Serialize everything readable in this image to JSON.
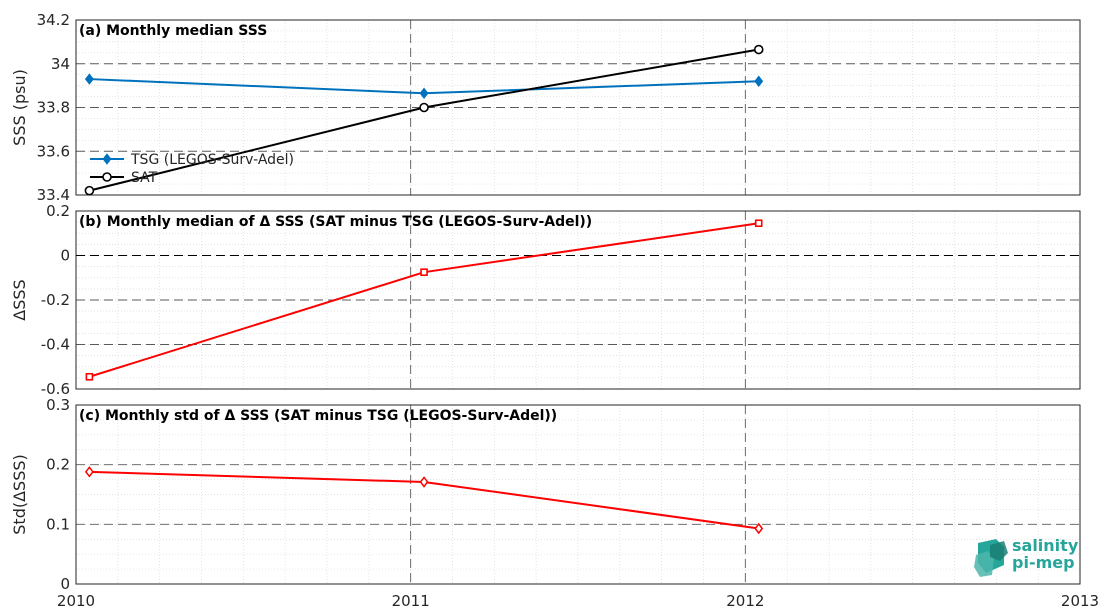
{
  "chart_data": [
    {
      "type": "line",
      "title": "(a) Monthly median SSS",
      "ylabel": "SSS (psu)",
      "ylim": [
        33.4,
        34.2
      ],
      "yticks": [
        "33.4",
        "33.6",
        "33.8",
        "34",
        "34.2"
      ],
      "grid": true,
      "legend": "left",
      "series": [
        {
          "name": "TSG (LEGOS-Surv-Adel)",
          "color": "#0072bd",
          "marker": "diamond",
          "x": [
            2010.04,
            2011.04,
            2012.04
          ],
          "y": [
            33.93,
            33.865,
            33.92
          ]
        },
        {
          "name": "SAT",
          "color": "#000000",
          "marker": "circle",
          "x": [
            2010.04,
            2011.04,
            2012.04
          ],
          "y": [
            33.42,
            33.8,
            34.065
          ]
        }
      ]
    },
    {
      "type": "line",
      "title": "(b) Monthly median of Δ SSS (SAT minus TSG (LEGOS-Surv-Adel))",
      "ylabel": "ΔSSS",
      "ylim": [
        -0.6,
        0.2
      ],
      "yticks": [
        "-0.6",
        "-0.4",
        "-0.2",
        "0",
        "0.2"
      ],
      "grid": true,
      "series": [
        {
          "color": "#ff0000",
          "marker": "square",
          "x": [
            2010.04,
            2011.04,
            2012.04
          ],
          "y": [
            -0.545,
            -0.075,
            0.145
          ]
        }
      ]
    },
    {
      "type": "line",
      "title": "(c) Monthly std of Δ SSS (SAT minus TSG (LEGOS-Surv-Adel))",
      "ylabel": "Std(ΔSSS)",
      "ylim": [
        0,
        0.3
      ],
      "yticks": [
        "0",
        "0.1",
        "0.2",
        "0.3"
      ],
      "grid": true,
      "series": [
        {
          "color": "#ff0000",
          "marker": "diamond",
          "x": [
            2010.04,
            2011.04,
            2012.04
          ],
          "y": [
            0.188,
            0.171,
            0.093
          ]
        }
      ]
    }
  ],
  "x_axis": {
    "xlim": [
      2010,
      2013
    ],
    "xticks": [
      "2010",
      "2011",
      "2012",
      "2013"
    ]
  },
  "logo": {
    "line1": "salinity",
    "line2": "pi-mep"
  }
}
